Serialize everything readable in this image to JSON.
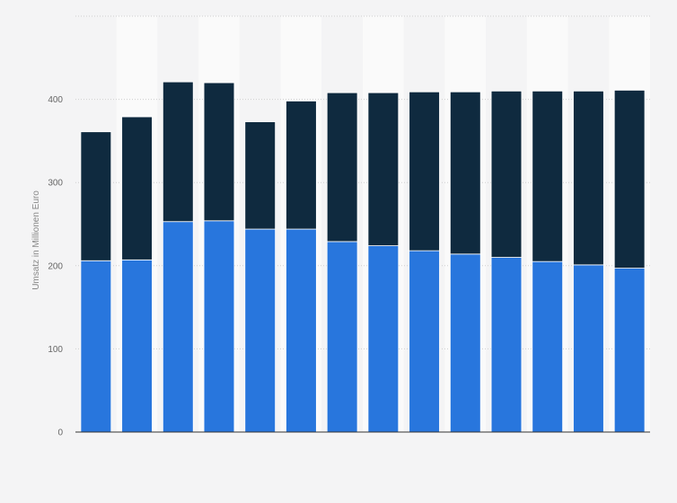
{
  "chart_data": {
    "type": "bar",
    "stacked": true,
    "categories": [
      "",
      "",
      "",
      "",
      "",
      "",
      "",
      "",
      "",
      "",
      "",
      "",
      "",
      ""
    ],
    "series": [
      {
        "color": "#2876dd",
        "values": [
          206,
          207,
          253,
          254,
          244,
          244,
          229,
          224,
          218,
          214,
          210,
          205,
          201,
          197
        ]
      },
      {
        "color": "#0f2a3f",
        "values": [
          155,
          172,
          168,
          166,
          129,
          154,
          179,
          184,
          191,
          195,
          200,
          205,
          209,
          214
        ]
      }
    ],
    "title": "",
    "xlabel": "",
    "ylabel": "Umsatz in Millionen Euro",
    "ylim": [
      0,
      500
    ],
    "yticks": [
      0,
      100,
      200,
      300,
      400
    ],
    "grid": true,
    "legend": "none"
  }
}
